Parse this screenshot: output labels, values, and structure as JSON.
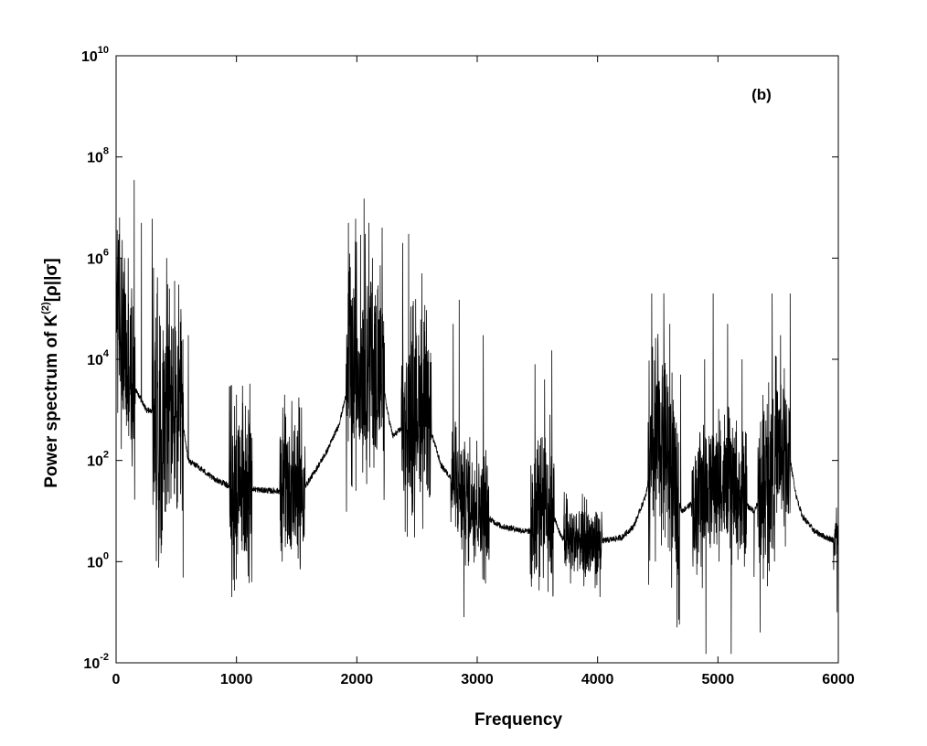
{
  "chart_data": {
    "type": "line",
    "panel_label": "(b)",
    "xlabel": "Frequency",
    "ylabel_parts": {
      "prefix": "Power spectrum of K",
      "superscript": "(2)",
      "suffix": "[ρ||σ]"
    },
    "xlim": [
      0,
      6000
    ],
    "ylim": [
      0.01,
      10000000000
    ],
    "yscale": "log",
    "grid": false,
    "x_ticks": [
      0,
      1000,
      2000,
      3000,
      4000,
      5000,
      6000
    ],
    "x_tick_labels": [
      "0",
      "1000",
      "2000",
      "3000",
      "4000",
      "5000",
      "6000"
    ],
    "y_ticks": [
      {
        "value": 0.01,
        "base": "10",
        "exp": "-2"
      },
      {
        "value": 1,
        "base": "10",
        "exp": "0"
      },
      {
        "value": 100,
        "base": "10",
        "exp": "2"
      },
      {
        "value": 10000,
        "base": "10",
        "exp": "4"
      },
      {
        "value": 1000000,
        "base": "10",
        "exp": "6"
      },
      {
        "value": 100000000,
        "base": "10",
        "exp": "8"
      },
      {
        "value": 10000000000,
        "base": "10",
        "exp": "10"
      }
    ],
    "series": [
      {
        "color": "#000000",
        "baseline": [
          [
            0,
            200000
          ],
          [
            60,
            20000
          ],
          [
            150,
            3000
          ],
          [
            250,
            1000
          ],
          [
            350,
            900
          ],
          [
            450,
            800
          ],
          [
            550,
            600
          ],
          [
            600,
            100
          ],
          [
            700,
            70
          ],
          [
            800,
            45
          ],
          [
            900,
            35
          ],
          [
            950,
            30
          ],
          [
            1000,
            30
          ],
          [
            1100,
            28
          ],
          [
            1200,
            26
          ],
          [
            1300,
            25
          ],
          [
            1400,
            25
          ],
          [
            1500,
            26
          ],
          [
            1560,
            28
          ],
          [
            1650,
            60
          ],
          [
            1750,
            150
          ],
          [
            1850,
            500
          ],
          [
            1930,
            3000
          ],
          [
            2000,
            10000
          ],
          [
            2100,
            10000
          ],
          [
            2200,
            5000
          ],
          [
            2270,
            600
          ],
          [
            2300,
            300
          ],
          [
            2400,
            500
          ],
          [
            2500,
            1500
          ],
          [
            2600,
            500
          ],
          [
            2700,
            80
          ],
          [
            2800,
            40
          ],
          [
            2900,
            20
          ],
          [
            3000,
            15
          ],
          [
            3100,
            7
          ],
          [
            3200,
            5
          ],
          [
            3300,
            4.5
          ],
          [
            3400,
            4
          ],
          [
            3450,
            4
          ],
          [
            3550,
            30
          ],
          [
            3620,
            10
          ],
          [
            3700,
            3
          ],
          [
            3800,
            2.5
          ],
          [
            3900,
            2.5
          ],
          [
            4000,
            2.5
          ],
          [
            4100,
            2.7
          ],
          [
            4200,
            3
          ],
          [
            4300,
            5
          ],
          [
            4400,
            20
          ],
          [
            4450,
            100
          ],
          [
            4550,
            300
          ],
          [
            4650,
            20
          ],
          [
            4700,
            10
          ],
          [
            4800,
            15
          ],
          [
            4900,
            30
          ],
          [
            5000,
            40
          ],
          [
            5100,
            30
          ],
          [
            5200,
            15
          ],
          [
            5300,
            10
          ],
          [
            5400,
            30
          ],
          [
            5500,
            200
          ],
          [
            5600,
            100
          ],
          [
            5650,
            20
          ],
          [
            5700,
            8
          ],
          [
            5800,
            4
          ],
          [
            5900,
            3
          ],
          [
            6000,
            2.5
          ]
        ],
        "clusters": [
          [
            0,
            160,
            30
          ],
          [
            300,
            560,
            90
          ],
          [
            940,
            1130,
            20
          ],
          [
            1360,
            1570,
            15
          ],
          [
            1910,
            2230,
            40
          ],
          [
            2370,
            2620,
            30
          ],
          [
            2780,
            3100,
            8
          ],
          [
            3440,
            3640,
            15
          ],
          [
            3720,
            4040,
            4
          ],
          [
            4420,
            4680,
            30
          ],
          [
            4780,
            5240,
            10
          ],
          [
            5330,
            5600,
            20
          ],
          [
            5960,
            6000,
            3
          ]
        ],
        "peaks": [
          [
            10,
            1000000
          ],
          [
            40,
            1000000
          ],
          [
            70,
            1000000
          ],
          [
            100,
            1000000
          ],
          [
            150,
            35000000
          ],
          [
            210,
            5000000
          ],
          [
            300,
            6000000
          ],
          [
            340,
            200000
          ],
          [
            380,
            100000
          ],
          [
            420,
            1000000
          ],
          [
            470,
            40000
          ],
          [
            500,
            5000
          ],
          [
            520,
            300000
          ],
          [
            600,
            30000
          ],
          [
            950,
            3000
          ],
          [
            1000,
            2000
          ],
          [
            1050,
            3000
          ],
          [
            1100,
            1000
          ],
          [
            1400,
            2000
          ],
          [
            1460,
            1500
          ],
          [
            1520,
            2000
          ],
          [
            1930,
            5000000
          ],
          [
            1990,
            6000000
          ],
          [
            2060,
            15000000
          ],
          [
            2100,
            5000000
          ],
          [
            2150,
            3000000
          ],
          [
            2210,
            4000000
          ],
          [
            2380,
            2000000
          ],
          [
            2430,
            3000000
          ],
          [
            2480,
            5000000
          ],
          [
            2540,
            500000
          ],
          [
            2800,
            50000
          ],
          [
            2850,
            150000
          ],
          [
            3050,
            30000
          ],
          [
            3480,
            8000
          ],
          [
            3560,
            4000
          ],
          [
            3620,
            15000
          ],
          [
            3900,
            1000
          ],
          [
            4450,
            200000
          ],
          [
            4500,
            20000
          ],
          [
            4550,
            200000
          ],
          [
            4600,
            50000
          ],
          [
            4690,
            5000
          ],
          [
            4890,
            10000
          ],
          [
            4960,
            200000
          ],
          [
            5080,
            50000
          ],
          [
            5200,
            10000
          ],
          [
            5450,
            200000
          ],
          [
            5520,
            30000
          ],
          [
            5600,
            200000
          ]
        ],
        "dips": [
          [
            60,
            1000
          ],
          [
            90,
            800
          ],
          [
            380,
            10
          ],
          [
            510,
            15
          ],
          [
            960,
            0.2
          ],
          [
            1090,
            3
          ],
          [
            1380,
            1
          ],
          [
            1520,
            5
          ],
          [
            1960,
            30
          ],
          [
            2020,
            300
          ],
          [
            2150,
            200
          ],
          [
            2480,
            3
          ],
          [
            2890,
            0.08
          ],
          [
            2930,
            1
          ],
          [
            3010,
            2
          ],
          [
            3520,
            0.5
          ],
          [
            3600,
            1
          ],
          [
            3900,
            0.5
          ],
          [
            3980,
            0.3
          ],
          [
            4020,
            0.2
          ],
          [
            4480,
            1
          ],
          [
            4560,
            3
          ],
          [
            4660,
            0.05
          ],
          [
            4870,
            0.3
          ],
          [
            4900,
            0.015
          ],
          [
            5010,
            1
          ],
          [
            5110,
            0.015
          ],
          [
            5220,
            0.8
          ],
          [
            5300,
            0.5
          ],
          [
            5350,
            0.04
          ],
          [
            5470,
            1
          ],
          [
            5560,
            2
          ],
          [
            5990,
            0.1
          ]
        ]
      }
    ]
  }
}
